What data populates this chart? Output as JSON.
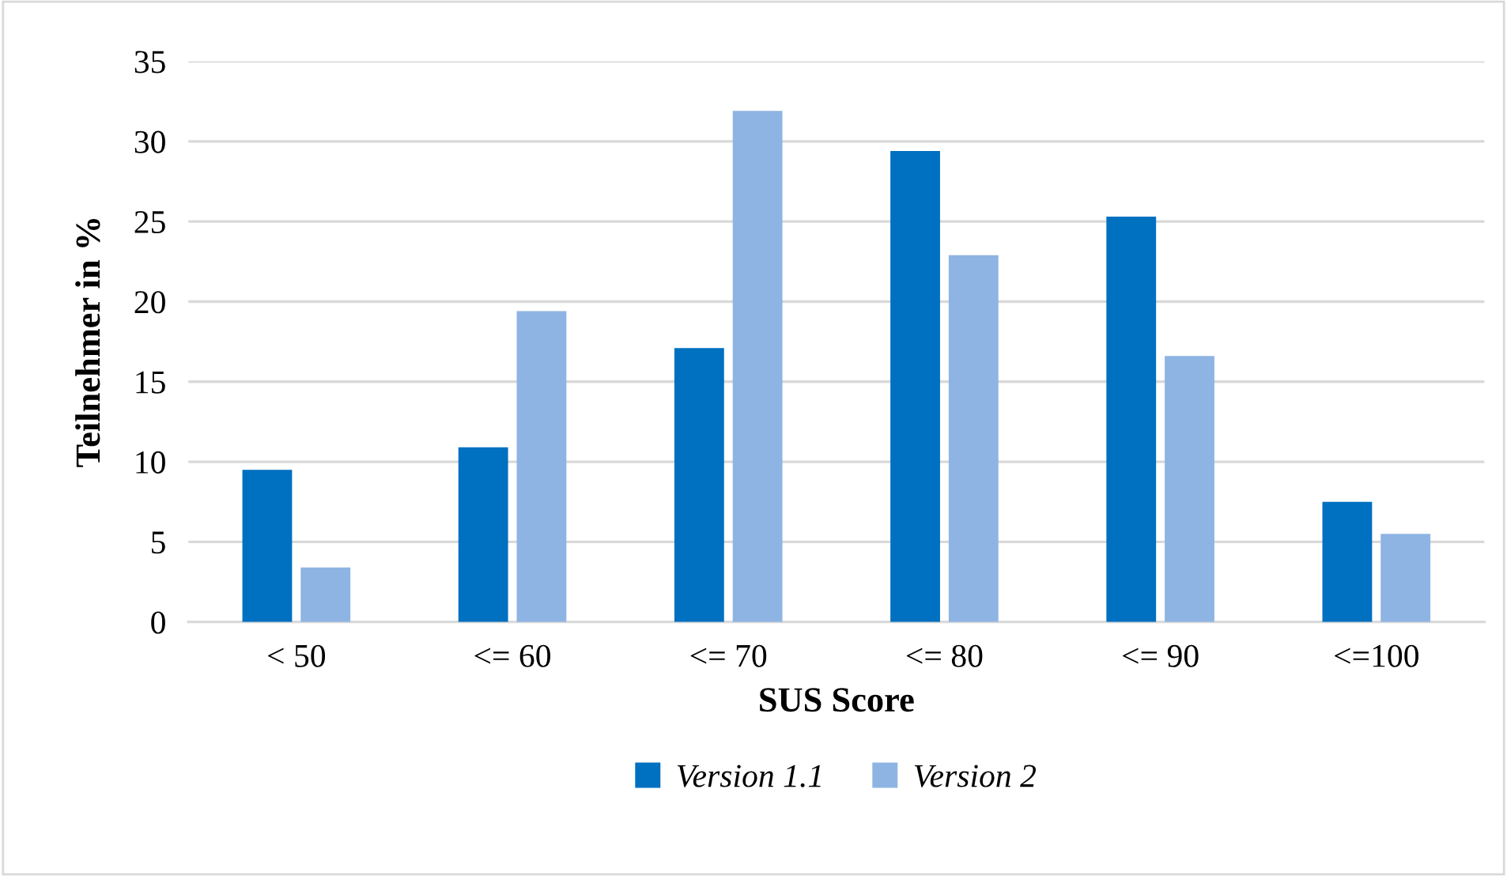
{
  "chart_data": {
    "type": "bar",
    "xlabel": "SUS Score",
    "ylabel": "Teilnehmer in %",
    "categories": [
      "< 50",
      "<= 60",
      "<= 70",
      "<= 80",
      "<= 90",
      "<=100"
    ],
    "series": [
      {
        "name": "Version 1.1",
        "color": "#0070c0",
        "values": [
          9.5,
          10.9,
          17.1,
          29.4,
          25.3,
          7.5
        ]
      },
      {
        "name": "Version 2",
        "color": "#8eb4e3",
        "values": [
          3.4,
          19.4,
          31.9,
          22.9,
          16.6,
          5.5
        ]
      }
    ],
    "ylim": [
      0,
      35
    ],
    "yticks": [
      0,
      5,
      10,
      15,
      20,
      25,
      30,
      35
    ],
    "grid": "y",
    "legend": "bottom"
  }
}
